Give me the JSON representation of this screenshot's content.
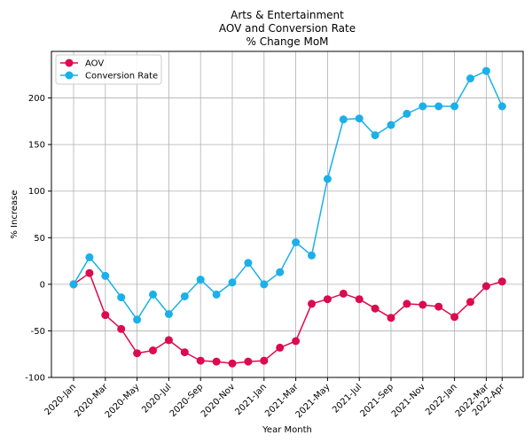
{
  "chart_data": {
    "type": "line",
    "title_lines": [
      "Arts & Entertainment",
      "AOV and Conversion Rate",
      "% Change MoM"
    ],
    "xlabel": "Year Month",
    "ylabel": "% Increase",
    "ylim": [
      -100,
      250
    ],
    "yticks": [
      -100,
      -50,
      0,
      50,
      100,
      150,
      200
    ],
    "x": [
      "2020-Jan",
      "2020-Feb",
      "2020-Mar",
      "2020-Apr",
      "2020-May",
      "2020-Jun",
      "2020-Jul",
      "2020-Aug",
      "2020-Sep",
      "2020-Oct",
      "2020-Nov",
      "2020-Dec",
      "2021-Jan",
      "2021-Feb",
      "2021-Mar",
      "2021-Apr",
      "2021-May",
      "2021-Jun",
      "2021-Jul",
      "2021-Aug",
      "2021-Sep",
      "2021-Oct",
      "2021-Nov",
      "2021-Dec",
      "2022-Jan",
      "2022-Feb",
      "2022-Mar",
      "2022-Apr"
    ],
    "xtick_labels": [
      "2020-Jan",
      "2020-Mar",
      "2020-May",
      "2020-Jul",
      "2020-Sep",
      "2020-Nov",
      "2021-Jan",
      "2021-Mar",
      "2021-May",
      "2021-Jul",
      "2021-Sep",
      "2021-Nov",
      "2022-Jan",
      "2022-Mar",
      "2022-Apr"
    ],
    "grid": true,
    "legend_position": "top-left",
    "series": [
      {
        "name": "AOV",
        "color": "#dc0a4f",
        "values": [
          0,
          12,
          -33,
          -48,
          -74,
          -71,
          -60,
          -73,
          -82,
          -83,
          -85,
          -83,
          -82,
          -68,
          -61,
          -21,
          -16,
          -10,
          -16,
          -26,
          -36,
          -21,
          -22,
          -24,
          -35,
          -19,
          -2,
          3
        ]
      },
      {
        "name": "Conversion Rate",
        "color": "#1bb0e8",
        "values": [
          0,
          29,
          9,
          -14,
          -38,
          -11,
          -32,
          -13,
          5,
          -11,
          2,
          23,
          0,
          13,
          45,
          31,
          113,
          177,
          178,
          160,
          171,
          183,
          191,
          191,
          191,
          221,
          229,
          191
        ]
      }
    ]
  }
}
